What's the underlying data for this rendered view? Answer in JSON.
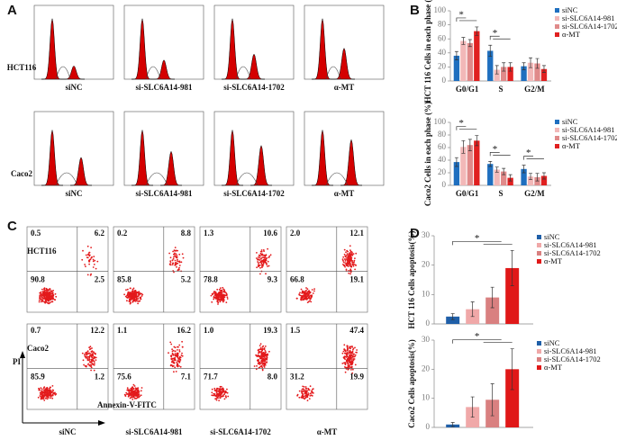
{
  "panels": {
    "a": "A",
    "b": "B",
    "c": "C",
    "d": "D"
  },
  "cell_cycle_histograms": {
    "rows": [
      "HCT116",
      "Caco2"
    ],
    "columns": [
      "siNC",
      "si-SLC6A14-981",
      "si-SLC6A14-1702",
      "α-MT"
    ]
  },
  "apoptosis_flow": {
    "y_axis": "PI",
    "x_axis": "Annexin-V-FITC",
    "columns": [
      "siNC",
      "si-SLC6A14-981",
      "si-SLC6A14-1702",
      "α-MT"
    ],
    "rows": [
      {
        "label": "HCT116",
        "plots": [
          [
            "0.5",
            "6.2",
            "90.8",
            "2.5"
          ],
          [
            "0.2",
            "8.8",
            "85.8",
            "5.2"
          ],
          [
            "1.3",
            "10.6",
            "78.8",
            "9.3"
          ],
          [
            "2.0",
            "12.1",
            "66.8",
            "19.1"
          ]
        ]
      },
      {
        "label": "Caco2",
        "plots": [
          [
            "0.7",
            "12.2",
            "85.9",
            "1.2"
          ],
          [
            "1.1",
            "16.2",
            "75.6",
            "7.1"
          ],
          [
            "1.0",
            "19.3",
            "71.7",
            "8.0"
          ],
          [
            "1.5",
            "47.4",
            "31.2",
            "19.9"
          ]
        ]
      }
    ]
  },
  "chart_data": [
    {
      "type": "bar",
      "ylabel": "HCT 116 Cells in each phase (%)",
      "categories": [
        "G0/G1",
        "S",
        "G2/M"
      ],
      "ylim": [
        0,
        100
      ],
      "yticks": [
        0,
        20,
        40,
        60,
        80,
        100
      ],
      "annotations": [
        "*",
        "*"
      ],
      "series": [
        {
          "name": "siNC",
          "color": "#1f6fbf",
          "values": [
            36,
            43,
            21
          ],
          "errors": [
            6,
            8,
            5
          ]
        },
        {
          "name": "si-SLC6A14-981",
          "color": "#f2b8b8",
          "values": [
            57,
            16,
            26
          ],
          "errors": [
            5,
            6,
            7
          ]
        },
        {
          "name": "si-SLC6A14-1702",
          "color": "#e08a8a",
          "values": [
            54,
            20,
            25
          ],
          "errors": [
            5,
            6,
            7
          ]
        },
        {
          "name": "α-MT",
          "color": "#e02020",
          "values": [
            71,
            20,
            17
          ],
          "errors": [
            6,
            6,
            5
          ]
        }
      ]
    },
    {
      "type": "bar",
      "ylabel": "Caco2 Cells in each phase (%)",
      "categories": [
        "G0/G1",
        "S",
        "G2/M"
      ],
      "ylim": [
        0,
        100
      ],
      "yticks": [
        0,
        20,
        40,
        60,
        80,
        100
      ],
      "annotations": [
        "*",
        "*",
        "*"
      ],
      "series": [
        {
          "name": "siNC",
          "color": "#1f6fbf",
          "values": [
            37,
            34,
            26
          ],
          "errors": [
            7,
            4,
            6
          ]
        },
        {
          "name": "si-SLC6A14-981",
          "color": "#f2b8b8",
          "values": [
            61,
            25,
            14
          ],
          "errors": [
            10,
            4,
            5
          ]
        },
        {
          "name": "si-SLC6A14-1702",
          "color": "#e08a8a",
          "values": [
            64,
            22,
            13
          ],
          "errors": [
            9,
            5,
            6
          ]
        },
        {
          "name": "α-MT",
          "color": "#e02020",
          "values": [
            71,
            12,
            15
          ],
          "errors": [
            8,
            5,
            5
          ]
        }
      ]
    },
    {
      "type": "bar",
      "ylabel": "HCT 116 Cells  apoptosis(%)",
      "ylim": [
        0,
        30
      ],
      "yticks": [
        0,
        10,
        20,
        30
      ],
      "annotations": [
        "*"
      ],
      "series": [
        {
          "name": "siNC",
          "color": "#1f5fa8",
          "values": [
            2.5
          ],
          "errors": [
            1
          ]
        },
        {
          "name": "si-SLC6A14-981",
          "color": "#f0a8a8",
          "values": [
            5
          ],
          "errors": [
            2.5
          ]
        },
        {
          "name": "si-SLC6A14-1702",
          "color": "#d98080",
          "values": [
            9
          ],
          "errors": [
            3.5
          ]
        },
        {
          "name": "α-MT",
          "color": "#e01818",
          "values": [
            19
          ],
          "errors": [
            6
          ]
        }
      ]
    },
    {
      "type": "bar",
      "ylabel": "Caco2 Cells  apoptosis(%)",
      "ylim": [
        0,
        30
      ],
      "yticks": [
        0,
        10,
        20,
        30
      ],
      "annotations": [
        "*"
      ],
      "series": [
        {
          "name": "siNC",
          "color": "#1f5fa8",
          "values": [
            1
          ],
          "errors": [
            0.7
          ]
        },
        {
          "name": "si-SLC6A14-981",
          "color": "#f0a8a8",
          "values": [
            7
          ],
          "errors": [
            3.5
          ]
        },
        {
          "name": "si-SLC6A14-1702",
          "color": "#d98080",
          "values": [
            9.5
          ],
          "errors": [
            5.5
          ]
        },
        {
          "name": "α-MT",
          "color": "#e01818",
          "values": [
            20
          ],
          "errors": [
            7
          ]
        }
      ]
    }
  ]
}
